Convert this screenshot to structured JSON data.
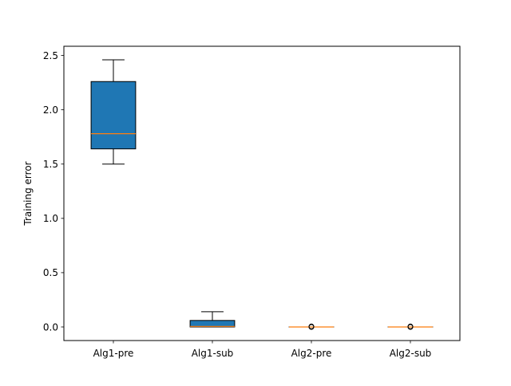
{
  "chart_data": {
    "type": "box",
    "title": "",
    "xlabel": "",
    "ylabel": "Training error",
    "ylim": [
      -0.125,
      2.585
    ],
    "yticks": [
      0.0,
      0.5,
      1.0,
      1.5,
      2.0,
      2.5
    ],
    "ytick_labels": [
      "0.0",
      "0.5",
      "1.0",
      "1.5",
      "2.0",
      "2.5"
    ],
    "categories": [
      "Alg1-pre",
      "Alg1-sub",
      "Alg2-pre",
      "Alg2-sub"
    ],
    "boxes": [
      {
        "whisker_low": 1.5,
        "q1": 1.64,
        "median": 1.78,
        "q3": 2.26,
        "whisker_high": 2.46,
        "outliers": []
      },
      {
        "whisker_low": 0.0,
        "q1": 0.0,
        "median": 0.005,
        "q3": 0.06,
        "whisker_high": 0.14,
        "outliers": []
      },
      {
        "whisker_low": 0.0,
        "q1": 0.0,
        "median": 0.0,
        "q3": 0.0,
        "whisker_high": 0.0,
        "outliers": [
          0.0,
          0.005
        ]
      },
      {
        "whisker_low": 0.0,
        "q1": 0.0,
        "median": 0.0,
        "q3": 0.0,
        "whisker_high": 0.0,
        "outliers": [
          0.0,
          0.005
        ]
      }
    ],
    "colors": {
      "box_fill": "#1f77b4",
      "median": "#ff7f0e",
      "line": "#000000"
    },
    "grid": false,
    "legend": "none"
  }
}
